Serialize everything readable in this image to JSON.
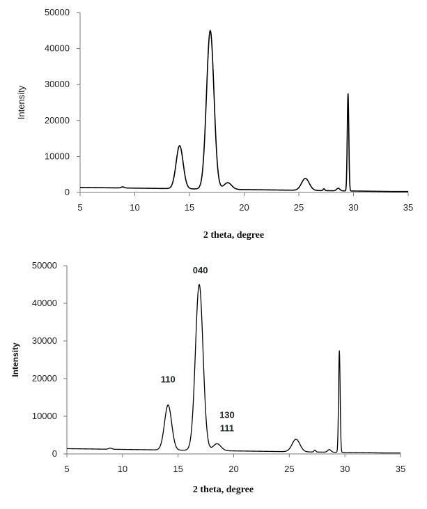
{
  "chart_data": [
    {
      "type": "line",
      "title": "",
      "xlabel": "2 theta, degree",
      "ylabel": "Intensity",
      "xlim": [
        5,
        35
      ],
      "ylim": [
        0,
        50000
      ],
      "xticks": [
        "5",
        "10",
        "15",
        "20",
        "25",
        "30",
        "35"
      ],
      "yticks": [
        "0",
        "10000",
        "20000",
        "30000",
        "40000",
        "50000"
      ],
      "grid": false,
      "legend": "none",
      "line_color": "#000000",
      "peaks": [
        {
          "x": 14.1,
          "y": 13000
        },
        {
          "x": 16.9,
          "y": 45000
        },
        {
          "x": 18.5,
          "y": 2700
        },
        {
          "x": 25.6,
          "y": 3900
        },
        {
          "x": 29.5,
          "y": 27500
        }
      ]
    },
    {
      "type": "line",
      "title": "",
      "xlabel": "2 theta, degree",
      "ylabel": "Intensity",
      "xlim": [
        5,
        35
      ],
      "ylim": [
        0,
        50000
      ],
      "xticks": [
        "5",
        "10",
        "15",
        "20",
        "25",
        "30",
        "35"
      ],
      "yticks": [
        "0",
        "10000",
        "20000",
        "30000",
        "40000",
        "50000"
      ],
      "grid": false,
      "legend": "none",
      "line_color": "#000000",
      "annotations": [
        {
          "text": "110",
          "x": 14.1,
          "y": 19000
        },
        {
          "text": "040",
          "x": 17.0,
          "y": 48000
        },
        {
          "text": "130",
          "x": 19.4,
          "y": 9500
        },
        {
          "text": "111",
          "x": 19.4,
          "y": 6000
        }
      ],
      "peaks": [
        {
          "x": 14.1,
          "y": 13000
        },
        {
          "x": 16.9,
          "y": 45000
        },
        {
          "x": 18.5,
          "y": 2700
        },
        {
          "x": 25.6,
          "y": 3900
        },
        {
          "x": 29.5,
          "y": 27500
        }
      ]
    }
  ]
}
